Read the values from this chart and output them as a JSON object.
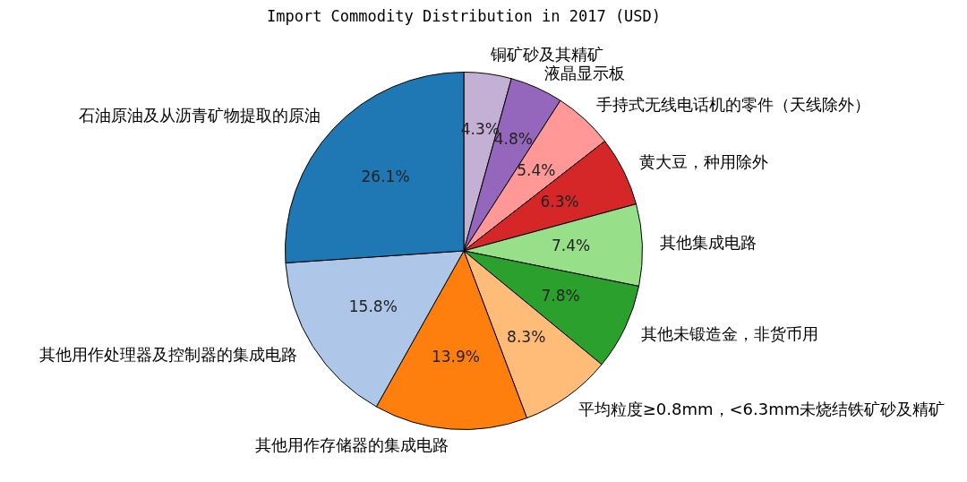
{
  "chart_data": {
    "type": "pie",
    "title": "Import Commodity Distribution in 2017 (USD)",
    "categories": [
      "铜矿砂及其精矿",
      "液晶显示板",
      "手持式无线电话机的零件（天线除外）",
      "黄大豆，种用除外",
      "其他集成电路",
      "其他未锻造金，非货币用",
      "平均粒度≥0.8mm，<6.3mm未烧结铁矿砂及精矿",
      "其他用作存储器的集成电路",
      "其他用作处理器及控制器的集成电路",
      "石油原油及从沥青矿物提取的原油"
    ],
    "values": [
      4.3,
      4.8,
      5.4,
      6.3,
      7.4,
      7.8,
      8.3,
      13.9,
      15.8,
      26.1
    ],
    "colors": [
      "#c5b0d5",
      "#9467bd",
      "#ff9896",
      "#d62728",
      "#98df8a",
      "#2ca02c",
      "#ffbb78",
      "#ff7f0e",
      "#aec7e8",
      "#1f77b4"
    ],
    "value_labels": [
      "4.3%",
      "4.8%",
      "5.4%",
      "6.3%",
      "7.4%",
      "7.8%",
      "8.3%",
      "13.9%",
      "15.8%",
      "26.1%"
    ],
    "legend": false
  }
}
